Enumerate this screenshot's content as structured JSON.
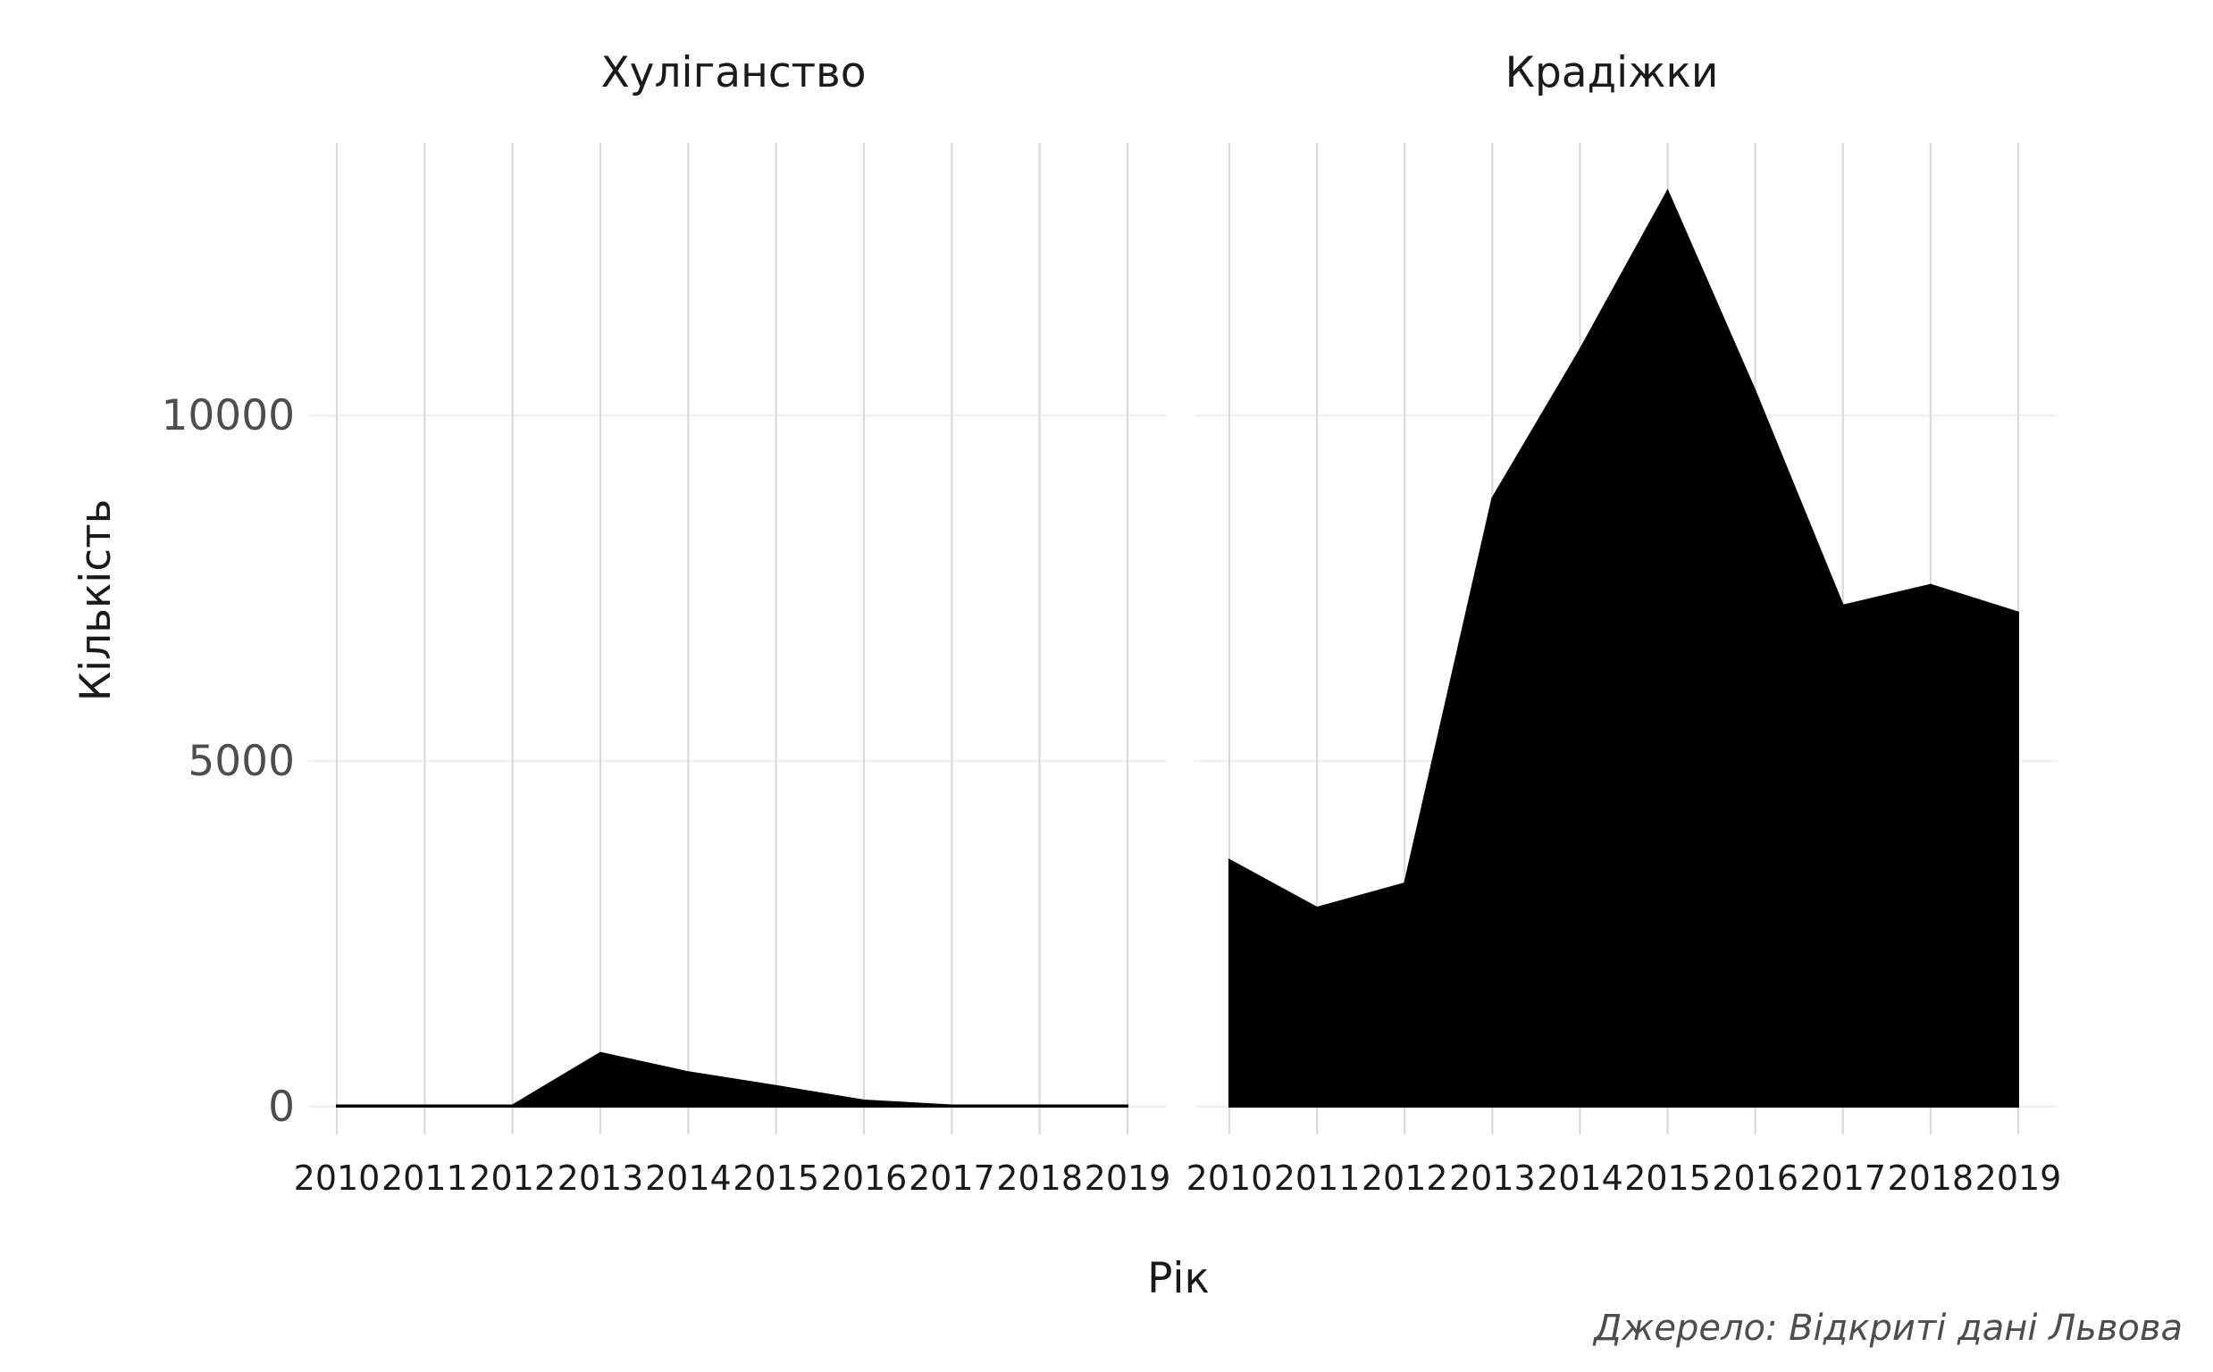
{
  "chart_data": {
    "type": "area",
    "facets": [
      {
        "title": "Хуліганство",
        "x": [
          "2010",
          "2011",
          "2012",
          "2013",
          "2014",
          "2015",
          "2016",
          "2017",
          "2018",
          "2019"
        ],
        "values": [
          20,
          20,
          20,
          780,
          500,
          300,
          90,
          20,
          20,
          20
        ]
      },
      {
        "title": "Крадіжки",
        "x": [
          "2010",
          "2011",
          "2012",
          "2013",
          "2014",
          "2015",
          "2016",
          "2017",
          "2018",
          "2019"
        ],
        "values": [
          3570,
          2880,
          3230,
          8800,
          10950,
          13250,
          10350,
          7250,
          7550,
          7150
        ]
      }
    ],
    "y_ticks": [
      "0",
      "5000",
      "10000"
    ],
    "ylim": [
      -500,
      13900
    ],
    "xlabel": "Рік",
    "ylabel": "Кількість",
    "caption": "Джерело: Відкриті дані Львова",
    "grid": true,
    "fill_color": "#000000"
  }
}
